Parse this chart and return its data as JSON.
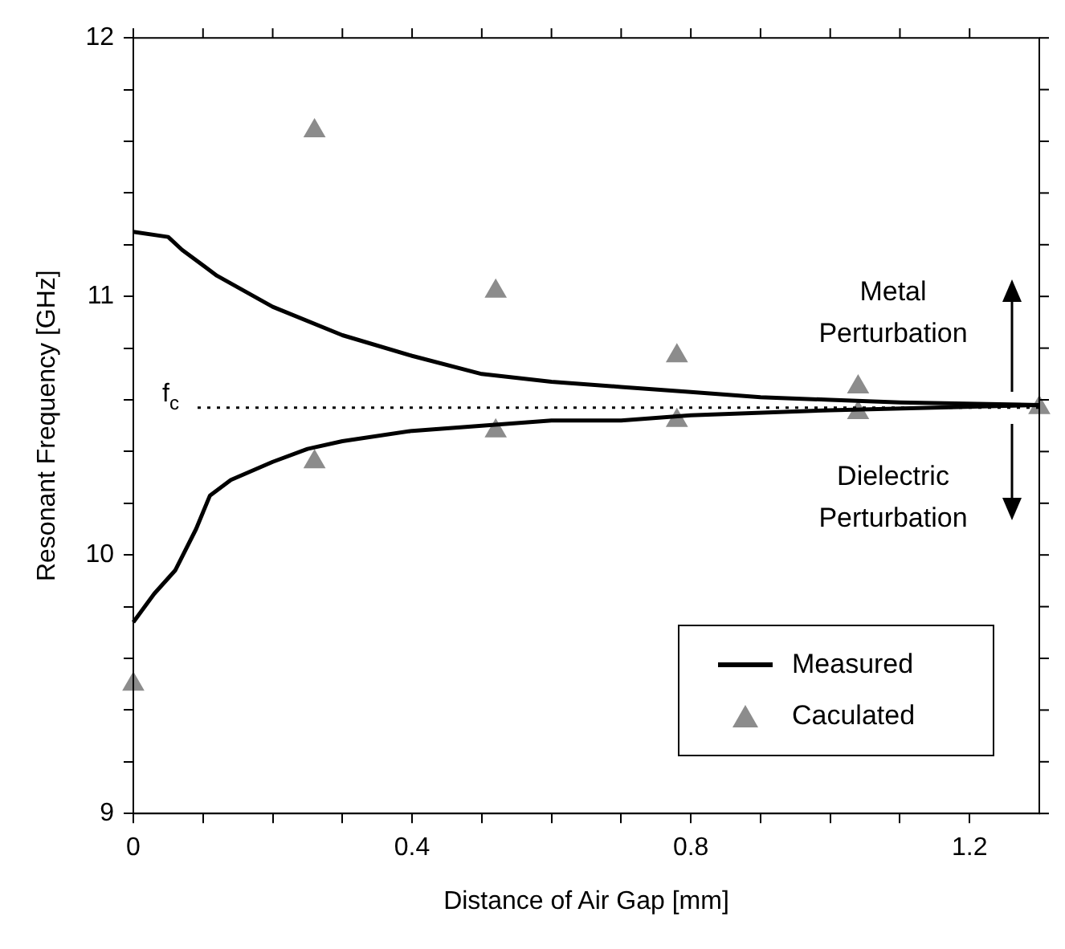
{
  "chart_data": {
    "type": "line",
    "xlabel": "Distance of Air Gap [mm]",
    "ylabel": "Resonant Frequency [GHz]",
    "xlim": [
      0,
      1.3
    ],
    "ylim": [
      9,
      12
    ],
    "xticks": [
      0,
      {
        "value": 0.1,
        "label": null
      },
      {
        "value": 0.2,
        "label": null
      },
      {
        "value": 0.3,
        "label": null
      },
      0.4,
      {
        "value": 0.5,
        "label": null
      },
      {
        "value": 0.6,
        "label": null
      },
      {
        "value": 0.7,
        "label": null
      },
      0.8,
      {
        "value": 0.9,
        "label": null
      },
      {
        "value": 1.0,
        "label": null
      },
      {
        "value": 1.1,
        "label": null
      },
      1.2
    ],
    "yticks": [
      9,
      {
        "value": 9.2,
        "label": null
      },
      {
        "value": 9.4,
        "label": null
      },
      {
        "value": 9.6,
        "label": null
      },
      {
        "value": 9.8,
        "label": null
      },
      10,
      {
        "value": 10.2,
        "label": null
      },
      {
        "value": 10.4,
        "label": null
      },
      {
        "value": 10.6,
        "label": null
      },
      {
        "value": 10.8,
        "label": null
      },
      11,
      {
        "value": 11.2,
        "label": null
      },
      {
        "value": 11.4,
        "label": null
      },
      {
        "value": 11.6,
        "label": null
      },
      {
        "value": 11.8,
        "label": null
      },
      12
    ],
    "grid": false,
    "legend": "bottom right",
    "series": [
      {
        "name": "Measured",
        "type": "line",
        "color": "#000000",
        "marker": "none",
        "x": [
          0,
          0.05,
          0.07,
          0.12,
          0.2,
          0.3,
          0.4,
          0.5,
          0.6,
          0.7,
          0.8,
          0.9,
          1.0,
          1.1,
          1.3
        ],
        "values": [
          11.25,
          11.23,
          11.18,
          11.08,
          10.96,
          10.85,
          10.77,
          10.7,
          10.67,
          10.65,
          10.63,
          10.61,
          10.6,
          10.59,
          10.58
        ]
      },
      {
        "type": "line",
        "color": "#000000",
        "marker": "none",
        "x": [
          0,
          0.03,
          0.06,
          0.09,
          0.11,
          0.14,
          0.2,
          0.25,
          0.3,
          0.4,
          0.5,
          0.6,
          0.7,
          0.8,
          1.0,
          1.3
        ],
        "values": [
          9.74,
          9.85,
          9.94,
          10.1,
          10.23,
          10.29,
          10.36,
          10.41,
          10.44,
          10.48,
          10.5,
          10.52,
          10.52,
          10.54,
          10.56,
          10.58
        ]
      },
      {
        "name": "Caculated",
        "type": "scatter",
        "color": "#8c8c8c",
        "marker": "triangle",
        "x": [
          0,
          0.26,
          0.26,
          0.52,
          0.52,
          0.78,
          0.78,
          1.04,
          1.04,
          1.3
        ],
        "values": [
          9.5,
          11.64,
          10.36,
          11.02,
          10.48,
          10.77,
          10.52,
          10.65,
          10.55,
          10.57
        ]
      }
    ],
    "ref_lines": [
      {
        "axis": "y",
        "value": 10.57,
        "label": "f$_{c}$",
        "color": "#000000",
        "line_style": "dotted"
      }
    ],
    "annotations": [
      "Metal Perturbation",
      "Dielectric Perturbation"
    ]
  }
}
